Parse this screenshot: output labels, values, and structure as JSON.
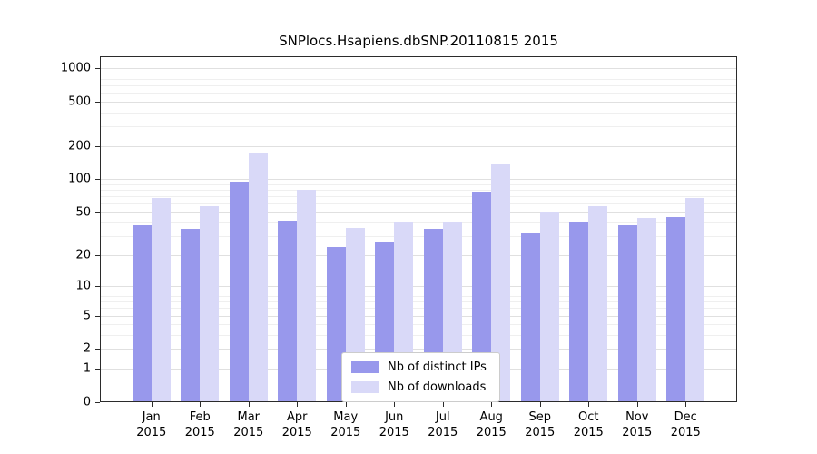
{
  "chart_data": {
    "type": "bar",
    "title": "SNPlocs.Hsapiens.dbSNP.20110815 2015",
    "categories": [
      "Jan",
      "Feb",
      "Mar",
      "Apr",
      "May",
      "Jun",
      "Jul",
      "Aug",
      "Sep",
      "Oct",
      "Nov",
      "Dec"
    ],
    "category_year": "2015",
    "series": [
      {
        "name": "Nb of distinct IPs",
        "color": "#9898ec",
        "values": [
          38,
          35,
          95,
          42,
          24,
          27,
          35,
          76,
          32,
          40,
          38,
          45
        ]
      },
      {
        "name": "Nb of downloads",
        "color": "#d9d9f8",
        "values": [
          67,
          57,
          175,
          80,
          36,
          41,
          40,
          135,
          50,
          57,
          44,
          67
        ]
      }
    ],
    "y_axis": {
      "scale": "log1p",
      "major_ticks": [
        0,
        1,
        2,
        5,
        10,
        20,
        50,
        100,
        200,
        500,
        1000
      ],
      "minor_ticks": [
        3,
        4,
        6,
        7,
        8,
        9,
        30,
        40,
        60,
        70,
        80,
        90,
        300,
        400,
        600,
        700,
        800,
        900
      ],
      "ylim": [
        0,
        1000
      ]
    },
    "xlabel": "",
    "ylabel": "",
    "grid": "horizontal",
    "legend": {
      "position": "bottom-center"
    }
  }
}
